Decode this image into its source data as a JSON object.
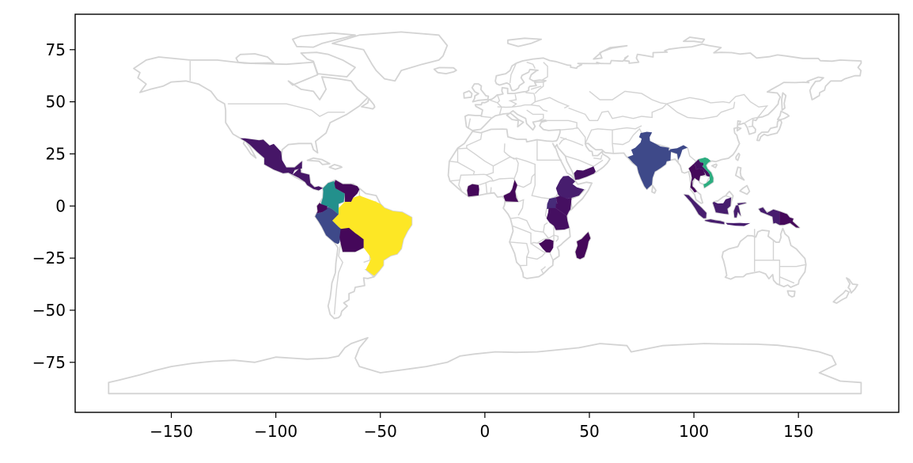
{
  "chart_data": {
    "type": "choropleth",
    "x_ticks": [
      -150,
      -100,
      -50,
      0,
      50,
      100,
      150
    ],
    "y_ticks": [
      75,
      50,
      25,
      0,
      -25,
      -50,
      -75
    ],
    "x_tick_labels": [
      "−150",
      "−100",
      "−50",
      "0",
      "50",
      "100",
      "150"
    ],
    "y_tick_labels": [
      "75",
      "50",
      "25",
      "0",
      "−25",
      "−50",
      "−75"
    ],
    "xlim": [
      -196,
      198
    ],
    "ylim": [
      -99,
      92
    ],
    "grid": false,
    "colormap": "viridis",
    "base_map_color": "#d3d3d3",
    "highlighted_regions": [
      {
        "region": "Brazil",
        "level": 1.0
      },
      {
        "region": "Colombia",
        "level": 0.5
      },
      {
        "region": "Vietnam",
        "level": 0.62
      },
      {
        "region": "India",
        "level": 0.22
      },
      {
        "region": "Peru",
        "level": 0.22
      },
      {
        "region": "Indonesia",
        "level": 0.08
      },
      {
        "region": "Ethiopia",
        "level": 0.08
      },
      {
        "region": "Mexico",
        "level": 0.06
      },
      {
        "region": "Central America",
        "level": 0.06
      },
      {
        "region": "Uganda",
        "level": 0.12
      },
      {
        "region": "Kenya",
        "level": 0.04
      },
      {
        "region": "Tanzania",
        "level": 0.04
      },
      {
        "region": "Madagascar",
        "level": 0.02
      },
      {
        "region": "Bolivia",
        "level": 0.02
      },
      {
        "region": "Ecuador",
        "level": 0.02
      },
      {
        "region": "Venezuela",
        "level": 0.02
      },
      {
        "region": "Ivory Coast",
        "level": 0.02
      },
      {
        "region": "Cameroon",
        "level": 0.02
      },
      {
        "region": "Yemen",
        "level": 0.04
      },
      {
        "region": "Laos",
        "level": 0.04
      },
      {
        "region": "Thailand",
        "level": 0.02
      },
      {
        "region": "Papua New Guinea",
        "level": 0.02
      },
      {
        "region": "Zimbabwe",
        "level": 0.02
      }
    ]
  }
}
